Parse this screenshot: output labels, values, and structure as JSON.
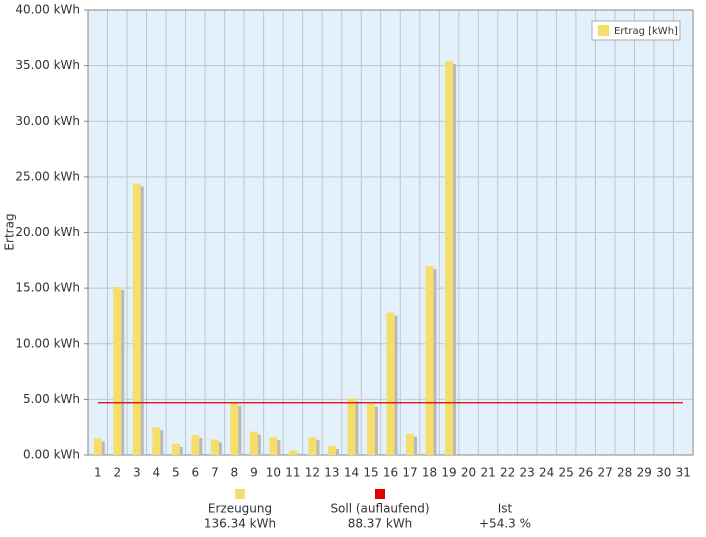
{
  "chart_data": {
    "type": "bar",
    "y_label": "Ertrag",
    "categories": [
      "1",
      "2",
      "3",
      "4",
      "5",
      "6",
      "7",
      "8",
      "9",
      "10",
      "11",
      "12",
      "13",
      "14",
      "15",
      "16",
      "17",
      "18",
      "19",
      "20",
      "21",
      "22",
      "23",
      "24",
      "25",
      "26",
      "27",
      "28",
      "29",
      "30",
      "31"
    ],
    "series": [
      {
        "name": "Ertrag [kWh]",
        "color": "#f5df6a",
        "values": [
          1.5,
          15.1,
          24.4,
          2.5,
          1.0,
          1.8,
          1.4,
          4.7,
          2.1,
          1.6,
          0.4,
          1.6,
          0.8,
          5.1,
          4.6,
          12.8,
          1.9,
          17.0,
          35.4,
          null,
          null,
          null,
          null,
          null,
          null,
          null,
          null,
          null,
          null,
          null,
          null
        ]
      }
    ],
    "reference_line": {
      "value": 4.7,
      "color": "#e00000"
    },
    "ylim": [
      0,
      40
    ],
    "yticks": [
      {
        "value": 0,
        "label": "0.00 kWh"
      },
      {
        "value": 5,
        "label": "5.00 kWh"
      },
      {
        "value": 10,
        "label": "10.00 kWh"
      },
      {
        "value": 15,
        "label": "15.00 kWh"
      },
      {
        "value": 20,
        "label": "20.00 kWh"
      },
      {
        "value": 25,
        "label": "25.00 kWh"
      },
      {
        "value": 30,
        "label": "30.00 kWh"
      },
      {
        "value": 35,
        "label": "35.00 kWh"
      },
      {
        "value": 40,
        "label": "40.00 kWh"
      }
    ],
    "grid": true,
    "legend": "top-right"
  },
  "summary": [
    {
      "label": "Erzeugung",
      "value": "136.34 kWh",
      "color": "#f5df6a"
    },
    {
      "label": "Soll (auflaufend)",
      "value": "88.37 kWh",
      "color": "#e00000"
    },
    {
      "label": "Ist",
      "value": "+54.3 %"
    }
  ]
}
